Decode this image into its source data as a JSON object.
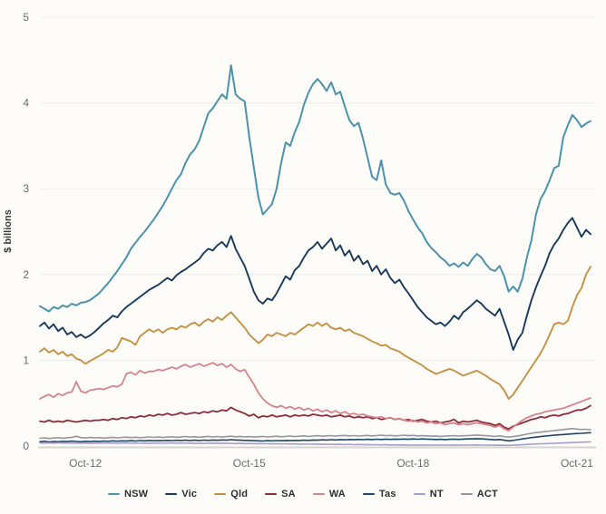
{
  "chart_data": {
    "type": "line",
    "title": "",
    "ylabel": "$ billions",
    "y_axis": {
      "min": 0,
      "max": 5,
      "tick_step": 1,
      "tick_labels": [
        "0",
        "1",
        "2",
        "3",
        "4",
        "5"
      ]
    },
    "x_axis": {
      "month_count": 122,
      "ticks": [
        {
          "label": "Oct-12",
          "month_index": 10
        },
        {
          "label": "Oct-15",
          "month_index": 46
        },
        {
          "label": "Oct-18",
          "month_index": 82
        },
        {
          "label": "Oct-21",
          "month_index": 118
        }
      ]
    },
    "grid": "horizontal-only",
    "legend_position": "bottom-center",
    "series": [
      {
        "name": "NSW",
        "color": "#4b93ad",
        "width": 2,
        "values": [
          1.63,
          1.6,
          1.57,
          1.62,
          1.6,
          1.64,
          1.62,
          1.66,
          1.64,
          1.67,
          1.68,
          1.7,
          1.74,
          1.78,
          1.84,
          1.9,
          1.97,
          2.04,
          2.12,
          2.2,
          2.3,
          2.37,
          2.44,
          2.5,
          2.57,
          2.64,
          2.72,
          2.8,
          2.9,
          3.0,
          3.1,
          3.17,
          3.3,
          3.4,
          3.46,
          3.56,
          3.72,
          3.88,
          3.94,
          4.02,
          4.1,
          4.05,
          4.44,
          4.1,
          4.05,
          4.02,
          3.6,
          3.25,
          2.9,
          2.7,
          2.76,
          2.82,
          3.0,
          3.3,
          3.54,
          3.5,
          3.66,
          3.78,
          3.98,
          4.12,
          4.22,
          4.28,
          4.22,
          4.14,
          4.24,
          4.1,
          4.13,
          3.96,
          3.8,
          3.73,
          3.77,
          3.58,
          3.36,
          3.14,
          3.1,
          3.33,
          3.05,
          2.95,
          2.93,
          2.95,
          2.86,
          2.74,
          2.64,
          2.55,
          2.48,
          2.38,
          2.31,
          2.26,
          2.2,
          2.16,
          2.1,
          2.13,
          2.09,
          2.14,
          2.1,
          2.18,
          2.24,
          2.2,
          2.12,
          2.06,
          2.04,
          2.1,
          1.98,
          1.8,
          1.86,
          1.8,
          1.95,
          2.2,
          2.4,
          2.7,
          2.88,
          2.97,
          3.1,
          3.24,
          3.27,
          3.6,
          3.74,
          3.86,
          3.8,
          3.72,
          3.76,
          3.79
        ]
      },
      {
        "name": "Vic",
        "color": "#173a5e",
        "width": 1.9,
        "values": [
          1.4,
          1.44,
          1.37,
          1.42,
          1.34,
          1.38,
          1.3,
          1.33,
          1.27,
          1.3,
          1.26,
          1.29,
          1.33,
          1.38,
          1.43,
          1.47,
          1.52,
          1.5,
          1.57,
          1.62,
          1.66,
          1.7,
          1.74,
          1.78,
          1.82,
          1.85,
          1.88,
          1.92,
          1.96,
          1.93,
          1.99,
          2.03,
          2.06,
          2.1,
          2.14,
          2.18,
          2.25,
          2.3,
          2.28,
          2.34,
          2.38,
          2.32,
          2.45,
          2.3,
          2.2,
          2.1,
          1.95,
          1.8,
          1.7,
          1.66,
          1.72,
          1.7,
          1.78,
          1.88,
          1.98,
          1.94,
          2.05,
          2.1,
          2.2,
          2.28,
          2.32,
          2.38,
          2.3,
          2.36,
          2.42,
          2.28,
          2.34,
          2.22,
          2.28,
          2.16,
          2.22,
          2.12,
          2.16,
          2.04,
          2.1,
          2.0,
          2.06,
          1.96,
          1.9,
          1.94,
          1.85,
          1.78,
          1.7,
          1.62,
          1.56,
          1.5,
          1.46,
          1.42,
          1.44,
          1.4,
          1.45,
          1.52,
          1.48,
          1.56,
          1.6,
          1.65,
          1.7,
          1.66,
          1.6,
          1.56,
          1.52,
          1.6,
          1.45,
          1.3,
          1.12,
          1.24,
          1.32,
          1.52,
          1.7,
          1.85,
          1.98,
          2.1,
          2.25,
          2.35,
          2.42,
          2.52,
          2.6,
          2.66,
          2.55,
          2.44,
          2.52,
          2.47
        ]
      },
      {
        "name": "Qld",
        "color": "#c59245",
        "width": 1.9,
        "values": [
          1.1,
          1.14,
          1.09,
          1.12,
          1.07,
          1.1,
          1.05,
          1.07,
          1.02,
          1.0,
          0.96,
          0.99,
          1.02,
          1.05,
          1.08,
          1.12,
          1.1,
          1.15,
          1.26,
          1.24,
          1.22,
          1.18,
          1.28,
          1.32,
          1.36,
          1.33,
          1.36,
          1.32,
          1.36,
          1.38,
          1.36,
          1.4,
          1.38,
          1.42,
          1.44,
          1.4,
          1.45,
          1.48,
          1.45,
          1.5,
          1.47,
          1.52,
          1.56,
          1.5,
          1.44,
          1.38,
          1.3,
          1.25,
          1.2,
          1.24,
          1.3,
          1.28,
          1.32,
          1.3,
          1.28,
          1.32,
          1.3,
          1.34,
          1.38,
          1.42,
          1.4,
          1.44,
          1.4,
          1.43,
          1.38,
          1.36,
          1.38,
          1.34,
          1.36,
          1.32,
          1.3,
          1.28,
          1.25,
          1.22,
          1.2,
          1.17,
          1.18,
          1.14,
          1.12,
          1.1,
          1.06,
          1.03,
          1.0,
          0.97,
          0.94,
          0.9,
          0.87,
          0.84,
          0.86,
          0.88,
          0.9,
          0.88,
          0.85,
          0.82,
          0.84,
          0.86,
          0.88,
          0.85,
          0.82,
          0.78,
          0.75,
          0.72,
          0.65,
          0.55,
          0.6,
          0.68,
          0.76,
          0.84,
          0.92,
          1.0,
          1.08,
          1.18,
          1.3,
          1.42,
          1.44,
          1.42,
          1.46,
          1.62,
          1.76,
          1.84,
          2.0,
          2.09
        ]
      },
      {
        "name": "SA",
        "color": "#8c2d39",
        "width": 1.8,
        "values": [
          0.29,
          0.28,
          0.3,
          0.28,
          0.29,
          0.28,
          0.3,
          0.29,
          0.28,
          0.29,
          0.3,
          0.29,
          0.3,
          0.3,
          0.31,
          0.3,
          0.32,
          0.31,
          0.33,
          0.32,
          0.34,
          0.33,
          0.35,
          0.34,
          0.36,
          0.35,
          0.37,
          0.36,
          0.38,
          0.36,
          0.37,
          0.39,
          0.37,
          0.38,
          0.39,
          0.38,
          0.4,
          0.39,
          0.41,
          0.4,
          0.42,
          0.41,
          0.45,
          0.42,
          0.4,
          0.38,
          0.35,
          0.37,
          0.33,
          0.35,
          0.34,
          0.36,
          0.34,
          0.35,
          0.36,
          0.34,
          0.36,
          0.35,
          0.36,
          0.35,
          0.37,
          0.36,
          0.35,
          0.36,
          0.34,
          0.35,
          0.36,
          0.34,
          0.35,
          0.33,
          0.34,
          0.33,
          0.34,
          0.32,
          0.33,
          0.31,
          0.32,
          0.33,
          0.31,
          0.32,
          0.3,
          0.31,
          0.29,
          0.3,
          0.31,
          0.29,
          0.28,
          0.29,
          0.27,
          0.28,
          0.29,
          0.31,
          0.27,
          0.29,
          0.28,
          0.29,
          0.3,
          0.28,
          0.27,
          0.26,
          0.24,
          0.26,
          0.22,
          0.2,
          0.23,
          0.25,
          0.27,
          0.29,
          0.31,
          0.32,
          0.34,
          0.33,
          0.35,
          0.36,
          0.35,
          0.37,
          0.38,
          0.4,
          0.42,
          0.42,
          0.44,
          0.47
        ]
      },
      {
        "name": "WA",
        "color": "#d6838b",
        "width": 1.8,
        "values": [
          0.55,
          0.58,
          0.6,
          0.57,
          0.61,
          0.59,
          0.62,
          0.63,
          0.75,
          0.64,
          0.62,
          0.65,
          0.66,
          0.67,
          0.66,
          0.68,
          0.7,
          0.69,
          0.72,
          0.84,
          0.86,
          0.83,
          0.88,
          0.85,
          0.87,
          0.87,
          0.89,
          0.88,
          0.9,
          0.92,
          0.9,
          0.93,
          0.95,
          0.92,
          0.94,
          0.96,
          0.93,
          0.95,
          0.97,
          0.94,
          0.96,
          0.92,
          0.95,
          0.9,
          0.87,
          0.89,
          0.8,
          0.72,
          0.62,
          0.55,
          0.5,
          0.47,
          0.45,
          0.47,
          0.44,
          0.46,
          0.43,
          0.45,
          0.42,
          0.44,
          0.41,
          0.43,
          0.4,
          0.42,
          0.39,
          0.41,
          0.38,
          0.4,
          0.37,
          0.38,
          0.36,
          0.37,
          0.35,
          0.34,
          0.33,
          0.34,
          0.32,
          0.33,
          0.31,
          0.32,
          0.3,
          0.29,
          0.3,
          0.28,
          0.29,
          0.27,
          0.28,
          0.26,
          0.27,
          0.25,
          0.26,
          0.27,
          0.25,
          0.26,
          0.25,
          0.26,
          0.27,
          0.26,
          0.25,
          0.24,
          0.22,
          0.24,
          0.2,
          0.18,
          0.22,
          0.26,
          0.3,
          0.33,
          0.35,
          0.37,
          0.38,
          0.4,
          0.41,
          0.42,
          0.43,
          0.44,
          0.46,
          0.48,
          0.5,
          0.52,
          0.54,
          0.56
        ]
      },
      {
        "name": "Tas",
        "color": "#224668",
        "width": 1.6,
        "values": [
          0.05,
          0.055,
          0.048,
          0.053,
          0.05,
          0.055,
          0.052,
          0.057,
          0.053,
          0.05,
          0.055,
          0.052,
          0.056,
          0.054,
          0.058,
          0.055,
          0.06,
          0.056,
          0.06,
          0.058,
          0.062,
          0.058,
          0.063,
          0.06,
          0.064,
          0.061,
          0.065,
          0.062,
          0.066,
          0.063,
          0.067,
          0.064,
          0.068,
          0.065,
          0.068,
          0.065,
          0.069,
          0.066,
          0.07,
          0.067,
          0.071,
          0.068,
          0.073,
          0.07,
          0.068,
          0.066,
          0.064,
          0.062,
          0.06,
          0.058,
          0.062,
          0.06,
          0.063,
          0.061,
          0.065,
          0.062,
          0.066,
          0.064,
          0.068,
          0.066,
          0.07,
          0.068,
          0.072,
          0.07,
          0.074,
          0.071,
          0.075,
          0.072,
          0.076,
          0.073,
          0.077,
          0.074,
          0.078,
          0.075,
          0.079,
          0.076,
          0.08,
          0.077,
          0.08,
          0.078,
          0.081,
          0.078,
          0.082,
          0.079,
          0.082,
          0.08,
          0.078,
          0.076,
          0.078,
          0.075,
          0.078,
          0.08,
          0.077,
          0.08,
          0.082,
          0.084,
          0.086,
          0.083,
          0.08,
          0.076,
          0.072,
          0.076,
          0.068,
          0.06,
          0.066,
          0.074,
          0.082,
          0.09,
          0.098,
          0.104,
          0.11,
          0.116,
          0.12,
          0.126,
          0.13,
          0.134,
          0.138,
          0.142,
          0.146,
          0.148,
          0.152,
          0.155
        ]
      },
      {
        "name": "NT",
        "color": "#a79ec9",
        "width": 1.6,
        "values": [
          0.035,
          0.032,
          0.036,
          0.033,
          0.037,
          0.034,
          0.036,
          0.033,
          0.035,
          0.032,
          0.034,
          0.031,
          0.033,
          0.034,
          0.036,
          0.033,
          0.035,
          0.032,
          0.034,
          0.036,
          0.033,
          0.035,
          0.032,
          0.034,
          0.031,
          0.033,
          0.035,
          0.032,
          0.034,
          0.036,
          0.033,
          0.035,
          0.032,
          0.034,
          0.031,
          0.033,
          0.03,
          0.032,
          0.034,
          0.031,
          0.033,
          0.03,
          0.032,
          0.029,
          0.031,
          0.028,
          0.03,
          0.027,
          0.029,
          0.026,
          0.028,
          0.025,
          0.027,
          0.024,
          0.026,
          0.023,
          0.025,
          0.022,
          0.024,
          0.021,
          0.023,
          0.02,
          0.022,
          0.019,
          0.021,
          0.018,
          0.02,
          0.017,
          0.019,
          0.016,
          0.018,
          0.015,
          0.017,
          0.014,
          0.016,
          0.013,
          0.015,
          0.012,
          0.014,
          0.011,
          0.013,
          0.01,
          0.012,
          0.01,
          0.012,
          0.01,
          0.011,
          0.009,
          0.011,
          0.009,
          0.01,
          0.012,
          0.01,
          0.012,
          0.011,
          0.013,
          0.012,
          0.011,
          0.01,
          0.009,
          0.008,
          0.01,
          0.008,
          0.007,
          0.009,
          0.012,
          0.015,
          0.018,
          0.021,
          0.024,
          0.026,
          0.028,
          0.03,
          0.032,
          0.034,
          0.036,
          0.038,
          0.04,
          0.042,
          0.044,
          0.046,
          0.048
        ]
      },
      {
        "name": "ACT",
        "color": "#95979d",
        "width": 1.6,
        "values": [
          0.09,
          0.095,
          0.088,
          0.093,
          0.097,
          0.091,
          0.096,
          0.1,
          0.113,
          0.098,
          0.094,
          0.099,
          0.095,
          0.098,
          0.092,
          0.097,
          0.101,
          0.095,
          0.1,
          0.104,
          0.098,
          0.103,
          0.097,
          0.102,
          0.106,
          0.1,
          0.105,
          0.099,
          0.104,
          0.108,
          0.102,
          0.107,
          0.111,
          0.104,
          0.109,
          0.103,
          0.108,
          0.112,
          0.106,
          0.111,
          0.105,
          0.11,
          0.114,
          0.108,
          0.112,
          0.106,
          0.11,
          0.105,
          0.108,
          0.112,
          0.106,
          0.11,
          0.114,
          0.108,
          0.112,
          0.116,
          0.11,
          0.114,
          0.118,
          0.112,
          0.116,
          0.12,
          0.114,
          0.118,
          0.122,
          0.116,
          0.12,
          0.124,
          0.118,
          0.122,
          0.116,
          0.12,
          0.124,
          0.118,
          0.122,
          0.126,
          0.12,
          0.124,
          0.118,
          0.122,
          0.126,
          0.12,
          0.124,
          0.118,
          0.121,
          0.118,
          0.114,
          0.117,
          0.112,
          0.115,
          0.118,
          0.121,
          0.116,
          0.119,
          0.122,
          0.125,
          0.128,
          0.124,
          0.12,
          0.116,
          0.112,
          0.118,
          0.11,
          0.104,
          0.11,
          0.118,
          0.128,
          0.138,
          0.148,
          0.156,
          0.162,
          0.168,
          0.174,
          0.18,
          0.186,
          0.192,
          0.198,
          0.204,
          0.198,
          0.192,
          0.196,
          0.19
        ]
      }
    ]
  },
  "colors": {
    "background": "#fdfcf9",
    "gridline": "#ecebe7",
    "axis_line": "#d6d5d0",
    "tick_text": "#6b6b6b"
  }
}
